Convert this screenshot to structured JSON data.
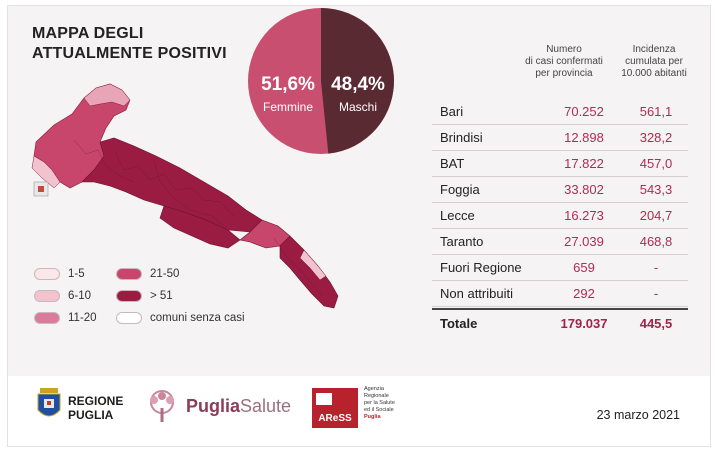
{
  "title": {
    "line1": "MAPPA DEGLI",
    "line2": "ATTUALMENTE POSITIVI"
  },
  "colors": {
    "dark": "#9b1c43",
    "mid": "#cc4f74",
    "light": "#e8a5b8",
    "vlight": "#f6d4dd",
    "none": "#ffffff",
    "pie_f": "#c84f70",
    "pie_m": "#5a2a33"
  },
  "pie": {
    "female": {
      "pct": "51,6%",
      "label": "Femmine",
      "value": 51.6
    },
    "male": {
      "pct": "48,4%",
      "label": "Maschi",
      "value": 48.4
    }
  },
  "legend": [
    {
      "label": "1-5",
      "color": "#fbe6eb"
    },
    {
      "label": "6-10",
      "color": "#f2c2cf"
    },
    {
      "label": "11-20",
      "color": "#d97b9a"
    },
    {
      "label": "21-50",
      "color": "#c8466c"
    },
    {
      "label": "> 51",
      "color": "#9b1c43"
    },
    {
      "label": "comuni senza casi",
      "color": "#ffffff"
    }
  ],
  "table": {
    "head_cases": [
      "Numero",
      "di casi confermati",
      "per provincia"
    ],
    "head_inc": [
      "Incidenza",
      "cumulata per",
      "10.000 abitanti"
    ],
    "rows": [
      {
        "name": "Bari",
        "cases": "70.252",
        "inc": "561,1"
      },
      {
        "name": "Brindisi",
        "cases": "12.898",
        "inc": "328,2"
      },
      {
        "name": "BAT",
        "cases": "17.822",
        "inc": "457,0"
      },
      {
        "name": "Foggia",
        "cases": "33.802",
        "inc": "543,3"
      },
      {
        "name": "Lecce",
        "cases": "16.273",
        "inc": "204,7"
      },
      {
        "name": "Taranto",
        "cases": "27.039",
        "inc": "468,8"
      },
      {
        "name": "Fuori Regione",
        "cases": "659",
        "inc": "-"
      },
      {
        "name": "Non attribuiti",
        "cases": "292",
        "inc": "-"
      }
    ],
    "total": {
      "name": "Totale",
      "cases": "179.037",
      "inc": "445,5"
    }
  },
  "footer": {
    "regione": [
      "REGIONE",
      "PUGLIA"
    ],
    "puglia_salute_a": "Puglia",
    "puglia_salute_b": "Salute",
    "aress": "AReSS",
    "aress_desc": [
      "Agenzia",
      "Regionale",
      "per la Salute",
      "ed il Sociale",
      "Puglia"
    ],
    "date": "23 marzo 2021"
  }
}
